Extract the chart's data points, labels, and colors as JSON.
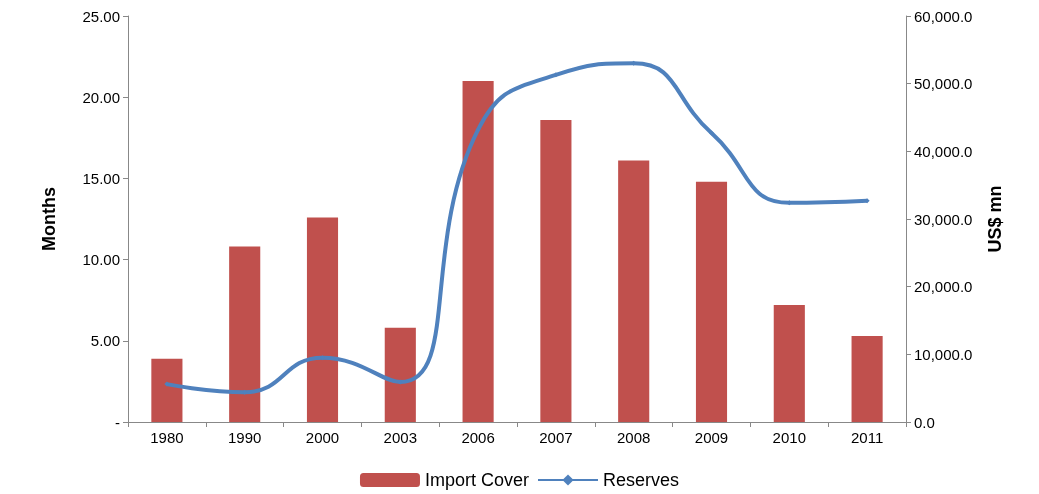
{
  "chart_data": {
    "type": "bar",
    "ylabel": "Months",
    "y2label": "US$ mn",
    "categories": [
      "1980",
      "1990",
      "2000",
      "2003",
      "2006",
      "2007",
      "2008",
      "2009",
      "2010",
      "2011"
    ],
    "series": [
      {
        "name": "Import Cover",
        "color": "#c0504d",
        "values": [
          3.9,
          10.8,
          12.6,
          5.8,
          21.0,
          18.6,
          16.1,
          14.8,
          7.2,
          5.3
        ]
      },
      {
        "name": "Reserves",
        "type": "line",
        "axis": "y2",
        "color": "#4f81bd",
        "marker": "diamond",
        "values": [
          5600,
          4400,
          9500,
          5900,
          43200,
          51300,
          53000,
          42700,
          32400,
          32700
        ]
      }
    ],
    "ylim": [
      0,
      25
    ],
    "yticks": [
      {
        "value": 0,
        "label": "-"
      },
      {
        "value": 5,
        "label": "5.00"
      },
      {
        "value": 10,
        "label": "10.00"
      },
      {
        "value": 15,
        "label": "15.00"
      },
      {
        "value": 20,
        "label": "20.00"
      },
      {
        "value": 25,
        "label": "25.00"
      }
    ],
    "y2lim": [
      0,
      60000
    ],
    "y2ticks": [
      {
        "value": 0,
        "label": "0.0"
      },
      {
        "value": 10000,
        "label": "10,000.0"
      },
      {
        "value": 20000,
        "label": "20,000.0"
      },
      {
        "value": 30000,
        "label": "30,000.0"
      },
      {
        "value": 40000,
        "label": "40,000.0"
      },
      {
        "value": 50000,
        "label": "50,000.0"
      },
      {
        "value": 60000,
        "label": "60,000.0"
      }
    ],
    "grid": false,
    "legend": "bottom"
  }
}
